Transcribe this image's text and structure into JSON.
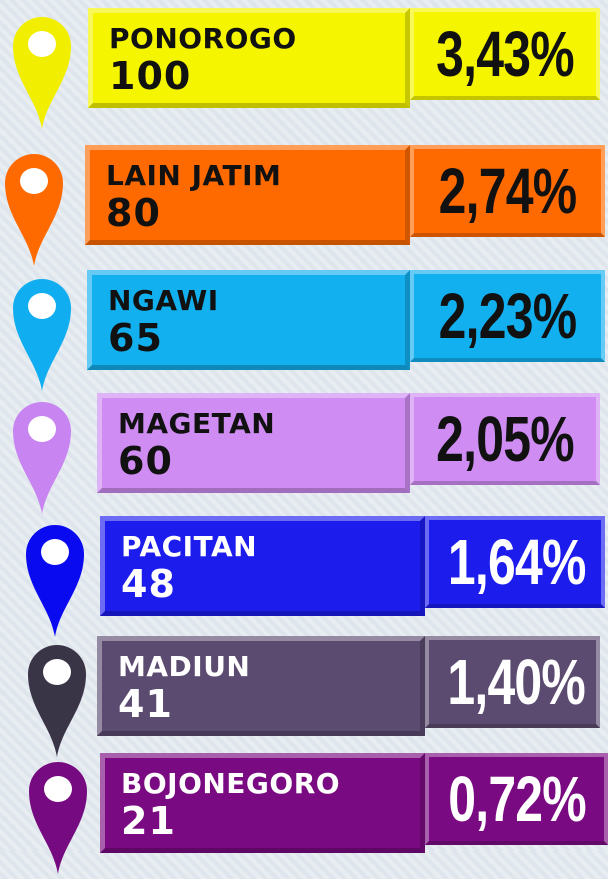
{
  "items": [
    {
      "name": "PONOROGO",
      "count": 100,
      "percent": "3,43%",
      "color": "#f5f500",
      "pin": "#f2ee00",
      "ink": "#111111"
    },
    {
      "name": "LAIN JATIM",
      "count": 80,
      "percent": "2,74%",
      "color": "#ff6a00",
      "pin": "#ff6a00",
      "ink": "#111111"
    },
    {
      "name": "NGAWI",
      "count": 65,
      "percent": "2,23%",
      "color": "#12b0ef",
      "pin": "#10aef0",
      "ink": "#111111"
    },
    {
      "name": "MAGETAN",
      "count": 60,
      "percent": "2,05%",
      "color": "#cf8cf2",
      "pin": "#c884f0",
      "ink": "#111111"
    },
    {
      "name": "PACITAN",
      "count": 48,
      "percent": "1,64%",
      "color": "#1c1ced",
      "pin": "#0a0af0",
      "ink": "#ffffff"
    },
    {
      "name": "MADIUN",
      "count": 41,
      "percent": "1,40%",
      "color": "#5b4b70",
      "pin": "#3a3546",
      "ink": "#ffffff"
    },
    {
      "name": "BOJONEGORO",
      "count": 21,
      "percent": "0,72%",
      "color": "#7a0a82",
      "pin": "#760a80",
      "ink": "#ffffff"
    }
  ]
}
